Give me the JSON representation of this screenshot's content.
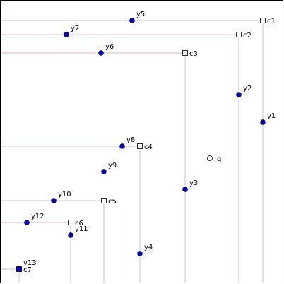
{
  "points": [
    "y1",
    "y2",
    "y3",
    "y4",
    "y5",
    "y6",
    "y7",
    "y8",
    "y9",
    "y10",
    "y11",
    "y12",
    "y13"
  ],
  "corners": [
    "c1",
    "c2",
    "c3",
    "c4",
    "c5",
    "c6",
    "c7"
  ],
  "query": "q"
}
